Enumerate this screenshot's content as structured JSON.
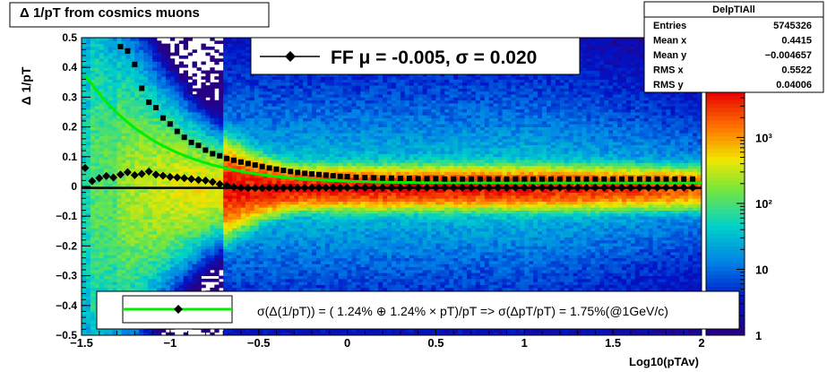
{
  "chart_data": {
    "type": "heatmap",
    "title": "Δ 1/pT from cosmics muons",
    "xlabel": "Log10(pTAv)",
    "ylabel": "Δ 1/pT",
    "xlim": [
      -1.5,
      2
    ],
    "ylim": [
      -0.5,
      0.5
    ],
    "x_ticks": [
      {
        "v": -1.5,
        "label": "−1.5"
      },
      {
        "v": -1.0,
        "label": "−1"
      },
      {
        "v": -0.5,
        "label": "−0.5"
      },
      {
        "v": 0.0,
        "label": "0"
      },
      {
        "v": 0.5,
        "label": "0.5"
      },
      {
        "v": 1.0,
        "label": "1"
      },
      {
        "v": 1.5,
        "label": "1.5"
      },
      {
        "v": 2.0,
        "label": "2"
      }
    ],
    "y_ticks": [
      {
        "v": 0.5,
        "label": "0.5"
      },
      {
        "v": 0.4,
        "label": "0.4"
      },
      {
        "v": 0.3,
        "label": "0.3"
      },
      {
        "v": 0.2,
        "label": "0.2"
      },
      {
        "v": 0.1,
        "label": "0.1"
      },
      {
        "v": 0.0,
        "label": "0"
      },
      {
        "v": -0.1,
        "label": "−0.1"
      },
      {
        "v": -0.2,
        "label": "−0.2"
      },
      {
        "v": -0.3,
        "label": "−0.3"
      },
      {
        "v": -0.4,
        "label": "−0.4"
      },
      {
        "v": -0.5,
        "label": "−0.5"
      }
    ],
    "colorbar": {
      "scale": "log",
      "range": [
        1,
        5000
      ],
      "labels": [
        {
          "v": 1000,
          "label": "10³"
        },
        {
          "v": 100,
          "label": "10²"
        },
        {
          "v": 10,
          "label": "10"
        },
        {
          "v": 1,
          "label": "1"
        }
      ]
    },
    "stats_box": {
      "name": "DelpTIAll",
      "rows": [
        {
          "label": "Entries",
          "value": "5745326"
        },
        {
          "label": "Mean x",
          "value": "0.4415"
        },
        {
          "label": "Mean y",
          "value": "−0.004657"
        },
        {
          "label": "RMS x",
          "value": "0.5522"
        },
        {
          "label": "RMS y",
          "value": "0.04006"
        }
      ]
    },
    "fit_legend": "FF μ = -0.005, σ =   0.020",
    "resolution_legend": "σ(Δ(1/pT)) = ( 1.24% ⊕  1.24% × pT)/pT => σ(ΔpT/pT) =  1.75%(@1GeV/c)",
    "series": [
      {
        "kind": "mean",
        "points": [
          [
            -1.48,
            0.062
          ],
          [
            -1.44,
            0.018
          ],
          [
            -1.4,
            0.028
          ],
          [
            -1.36,
            0.035
          ],
          [
            -1.32,
            0.03
          ],
          [
            -1.28,
            0.04
          ],
          [
            -1.24,
            0.048
          ],
          [
            -1.2,
            0.038
          ],
          [
            -1.16,
            0.042
          ],
          [
            -1.12,
            0.05
          ],
          [
            -1.08,
            0.04
          ],
          [
            -1.04,
            0.036
          ],
          [
            -1.0,
            0.032
          ],
          [
            -0.96,
            0.03
          ],
          [
            -0.92,
            0.028
          ],
          [
            -0.88,
            0.025
          ],
          [
            -0.84,
            0.022
          ],
          [
            -0.8,
            0.02
          ],
          [
            -0.76,
            0.015
          ],
          [
            -0.72,
            0.008
          ],
          [
            -0.68,
            0.003
          ],
          [
            -0.64,
            -0.002
          ],
          [
            -0.6,
            -0.005
          ],
          [
            -0.56,
            -0.006
          ],
          [
            -0.52,
            -0.006
          ],
          [
            -0.48,
            -0.006
          ],
          [
            -0.44,
            -0.005
          ],
          [
            -0.4,
            -0.005
          ],
          [
            -0.36,
            -0.005
          ],
          [
            -0.32,
            -0.005
          ],
          [
            -0.28,
            -0.005
          ],
          [
            -0.24,
            -0.004
          ],
          [
            -0.2,
            -0.004
          ],
          [
            -0.16,
            -0.004
          ],
          [
            -0.12,
            -0.004
          ],
          [
            -0.08,
            -0.004
          ],
          [
            -0.04,
            -0.004
          ],
          [
            0.0,
            -0.004
          ],
          [
            0.05,
            -0.004
          ],
          [
            0.1,
            -0.004
          ],
          [
            0.15,
            -0.004
          ],
          [
            0.2,
            -0.004
          ],
          [
            0.25,
            -0.004
          ],
          [
            0.3,
            -0.004
          ],
          [
            0.35,
            -0.004
          ],
          [
            0.4,
            -0.004
          ],
          [
            0.45,
            -0.004
          ],
          [
            0.5,
            -0.004
          ],
          [
            0.55,
            -0.004
          ],
          [
            0.6,
            -0.004
          ],
          [
            0.65,
            -0.004
          ],
          [
            0.7,
            -0.004
          ],
          [
            0.75,
            -0.004
          ],
          [
            0.8,
            -0.004
          ],
          [
            0.85,
            -0.004
          ],
          [
            0.9,
            -0.004
          ],
          [
            0.95,
            -0.004
          ],
          [
            1.0,
            -0.004
          ],
          [
            1.05,
            -0.004
          ],
          [
            1.1,
            -0.004
          ],
          [
            1.15,
            -0.004
          ],
          [
            1.2,
            -0.004
          ],
          [
            1.25,
            -0.004
          ],
          [
            1.3,
            -0.004
          ],
          [
            1.35,
            -0.004
          ],
          [
            1.4,
            -0.004
          ],
          [
            1.45,
            -0.004
          ],
          [
            1.5,
            -0.004
          ],
          [
            1.55,
            -0.004
          ],
          [
            1.6,
            -0.004
          ],
          [
            1.65,
            -0.004
          ],
          [
            1.7,
            -0.004
          ],
          [
            1.75,
            -0.004
          ],
          [
            1.8,
            -0.004
          ],
          [
            1.85,
            -0.004
          ],
          [
            1.9,
            -0.004
          ],
          [
            1.95,
            -0.004
          ]
        ]
      },
      {
        "kind": "rms",
        "points": [
          [
            -1.28,
            0.47
          ],
          [
            -1.24,
            0.455
          ],
          [
            -1.2,
            0.41
          ],
          [
            -1.16,
            0.33
          ],
          [
            -1.12,
            0.283
          ],
          [
            -1.08,
            0.265
          ],
          [
            -1.04,
            0.23
          ],
          [
            -1.0,
            0.21
          ],
          [
            -0.96,
            0.185
          ],
          [
            -0.92,
            0.165
          ],
          [
            -0.88,
            0.148
          ],
          [
            -0.84,
            0.138
          ],
          [
            -0.8,
            0.122
          ],
          [
            -0.76,
            0.11
          ],
          [
            -0.72,
            0.103
          ],
          [
            -0.68,
            0.094
          ],
          [
            -0.64,
            0.088
          ],
          [
            -0.6,
            0.082
          ],
          [
            -0.56,
            0.077
          ],
          [
            -0.52,
            0.072
          ],
          [
            -0.48,
            0.067
          ],
          [
            -0.44,
            0.062
          ],
          [
            -0.4,
            0.058
          ],
          [
            -0.36,
            0.054
          ],
          [
            -0.32,
            0.05
          ],
          [
            -0.28,
            0.047
          ],
          [
            -0.24,
            0.044
          ],
          [
            -0.2,
            0.042
          ],
          [
            -0.16,
            0.04
          ],
          [
            -0.12,
            0.038
          ],
          [
            -0.08,
            0.036
          ],
          [
            -0.04,
            0.034
          ],
          [
            0.0,
            0.033
          ],
          [
            0.05,
            0.031
          ],
          [
            0.1,
            0.03
          ],
          [
            0.15,
            0.029
          ],
          [
            0.2,
            0.028
          ],
          [
            0.25,
            0.028
          ],
          [
            0.3,
            0.027
          ],
          [
            0.35,
            0.027
          ],
          [
            0.4,
            0.026
          ],
          [
            0.45,
            0.026
          ],
          [
            0.5,
            0.026
          ],
          [
            0.55,
            0.025
          ],
          [
            0.6,
            0.025
          ],
          [
            0.65,
            0.025
          ],
          [
            0.7,
            0.025
          ],
          [
            0.75,
            0.025
          ],
          [
            0.8,
            0.025
          ],
          [
            0.85,
            0.025
          ],
          [
            0.9,
            0.025
          ],
          [
            0.95,
            0.025
          ],
          [
            1.0,
            0.025
          ],
          [
            1.05,
            0.025
          ],
          [
            1.1,
            0.025
          ],
          [
            1.15,
            0.025
          ],
          [
            1.2,
            0.025
          ],
          [
            1.25,
            0.025
          ],
          [
            1.3,
            0.025
          ],
          [
            1.35,
            0.025
          ],
          [
            1.4,
            0.025
          ],
          [
            1.45,
            0.025
          ],
          [
            1.5,
            0.025
          ],
          [
            1.55,
            0.025
          ],
          [
            1.6,
            0.025
          ],
          [
            1.65,
            0.025
          ],
          [
            1.7,
            0.025
          ],
          [
            1.75,
            0.025
          ],
          [
            1.8,
            0.025
          ],
          [
            1.85,
            0.025
          ],
          [
            1.9,
            0.025
          ],
          [
            1.95,
            0.025
          ]
        ]
      },
      {
        "kind": "fit",
        "color": "#00ee00",
        "formula": "sqrt(0.0124^2 + (0.0124*pT)^2)/pT",
        "x_range": [
          -1.48,
          2.0
        ]
      }
    ],
    "fit_mean_line": {
      "y": -0.005,
      "color": "#000000"
    }
  }
}
